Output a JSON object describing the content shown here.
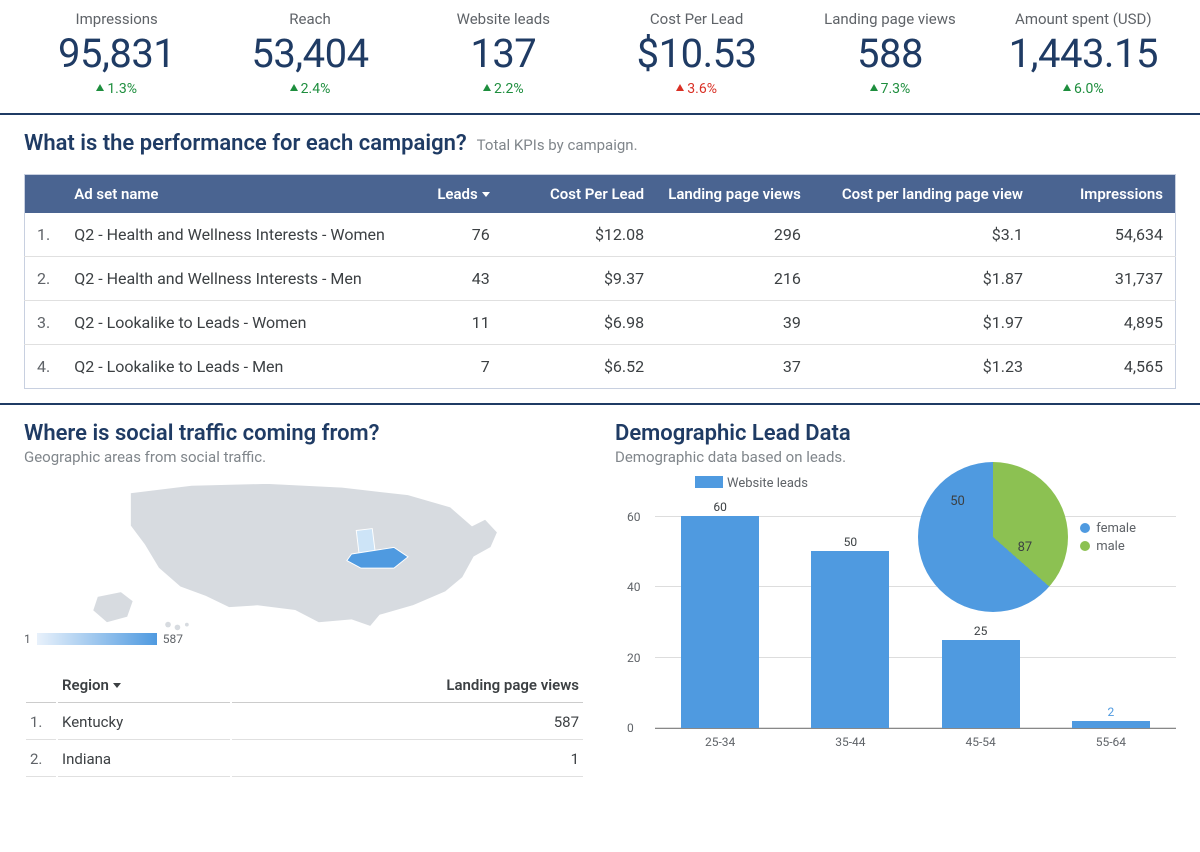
{
  "colors": {
    "primary_text": "#1f3b64",
    "up": "#1e8e3e",
    "down": "#d93025",
    "table_header_bg": "#4a6491",
    "bar": "#4f9ae0",
    "pie_female": "#4f9ae0",
    "pie_male": "#8cc152",
    "map_fill": "#d7dbe0",
    "map_highlight": "#4f9ae0",
    "map_highlight2": "#cde4f7"
  },
  "kpis": [
    {
      "label": "Impressions",
      "value": "95,831",
      "delta": "1.3%",
      "dir": "up"
    },
    {
      "label": "Reach",
      "value": "53,404",
      "delta": "2.4%",
      "dir": "up"
    },
    {
      "label": "Website leads",
      "value": "137",
      "delta": "2.2%",
      "dir": "up"
    },
    {
      "label": "Cost Per Lead",
      "value": "$10.53",
      "delta": "3.6%",
      "dir": "down"
    },
    {
      "label": "Landing page views",
      "value": "588",
      "delta": "7.3%",
      "dir": "up"
    },
    {
      "label": "Amount spent (USD)",
      "value": "1,443.15",
      "delta": "6.0%",
      "dir": "up"
    }
  ],
  "campaign_section": {
    "title": "What is the performance for each campaign?",
    "subtitle": "Total KPIs by campaign.",
    "columns": [
      "",
      "Ad set name",
      "Leads",
      "Cost Per Lead",
      "Landing page views",
      "Cost per landing page view",
      "Impressions"
    ],
    "sort_col": 2,
    "rows": [
      {
        "n": "1.",
        "name": "Q2 - Health and Wellness Interests - Women",
        "leads": "76",
        "cpl": "$12.08",
        "lpv": "296",
        "cplpv": "$3.1",
        "impr": "54,634"
      },
      {
        "n": "2.",
        "name": "Q2 - Health and Wellness Interests - Men",
        "leads": "43",
        "cpl": "$9.37",
        "lpv": "216",
        "cplpv": "$1.87",
        "impr": "31,737"
      },
      {
        "n": "3.",
        "name": "Q2 - Lookalike to Leads - Women",
        "leads": "11",
        "cpl": "$6.98",
        "lpv": "39",
        "cplpv": "$1.97",
        "impr": "4,895"
      },
      {
        "n": "4.",
        "name": "Q2 - Lookalike to Leads - Men",
        "leads": "7",
        "cpl": "$6.52",
        "lpv": "37",
        "cplpv": "$1.23",
        "impr": "4,565"
      }
    ]
  },
  "geo_section": {
    "title": "Where is social traffic coming from?",
    "subtitle": "Geographic areas from social traffic.",
    "scale_min": "1",
    "scale_max": "587",
    "columns": [
      "",
      "Region",
      "Landing page views"
    ],
    "rows": [
      {
        "n": "1.",
        "region": "Kentucky",
        "lpv": "587"
      },
      {
        "n": "2.",
        "region": "Indiana",
        "lpv": "1"
      }
    ]
  },
  "demo_section": {
    "title": "Demographic Lead Data",
    "subtitle": "Demographic data based on leads.",
    "bar_chart": {
      "legend": "Website leads",
      "y_ticks": [
        0,
        20,
        40,
        60
      ],
      "y_max": 65,
      "categories": [
        "25-34",
        "35-44",
        "45-54",
        "55-64"
      ],
      "values": [
        60,
        50,
        25,
        2
      ],
      "bar_color": "#4f9ae0",
      "label_last_color": "#4f9ae0"
    },
    "pie_chart": {
      "slices": [
        {
          "label": "female",
          "value": 87,
          "color": "#4f9ae0"
        },
        {
          "label": "male",
          "value": 50,
          "color": "#8cc152"
        }
      ]
    }
  }
}
